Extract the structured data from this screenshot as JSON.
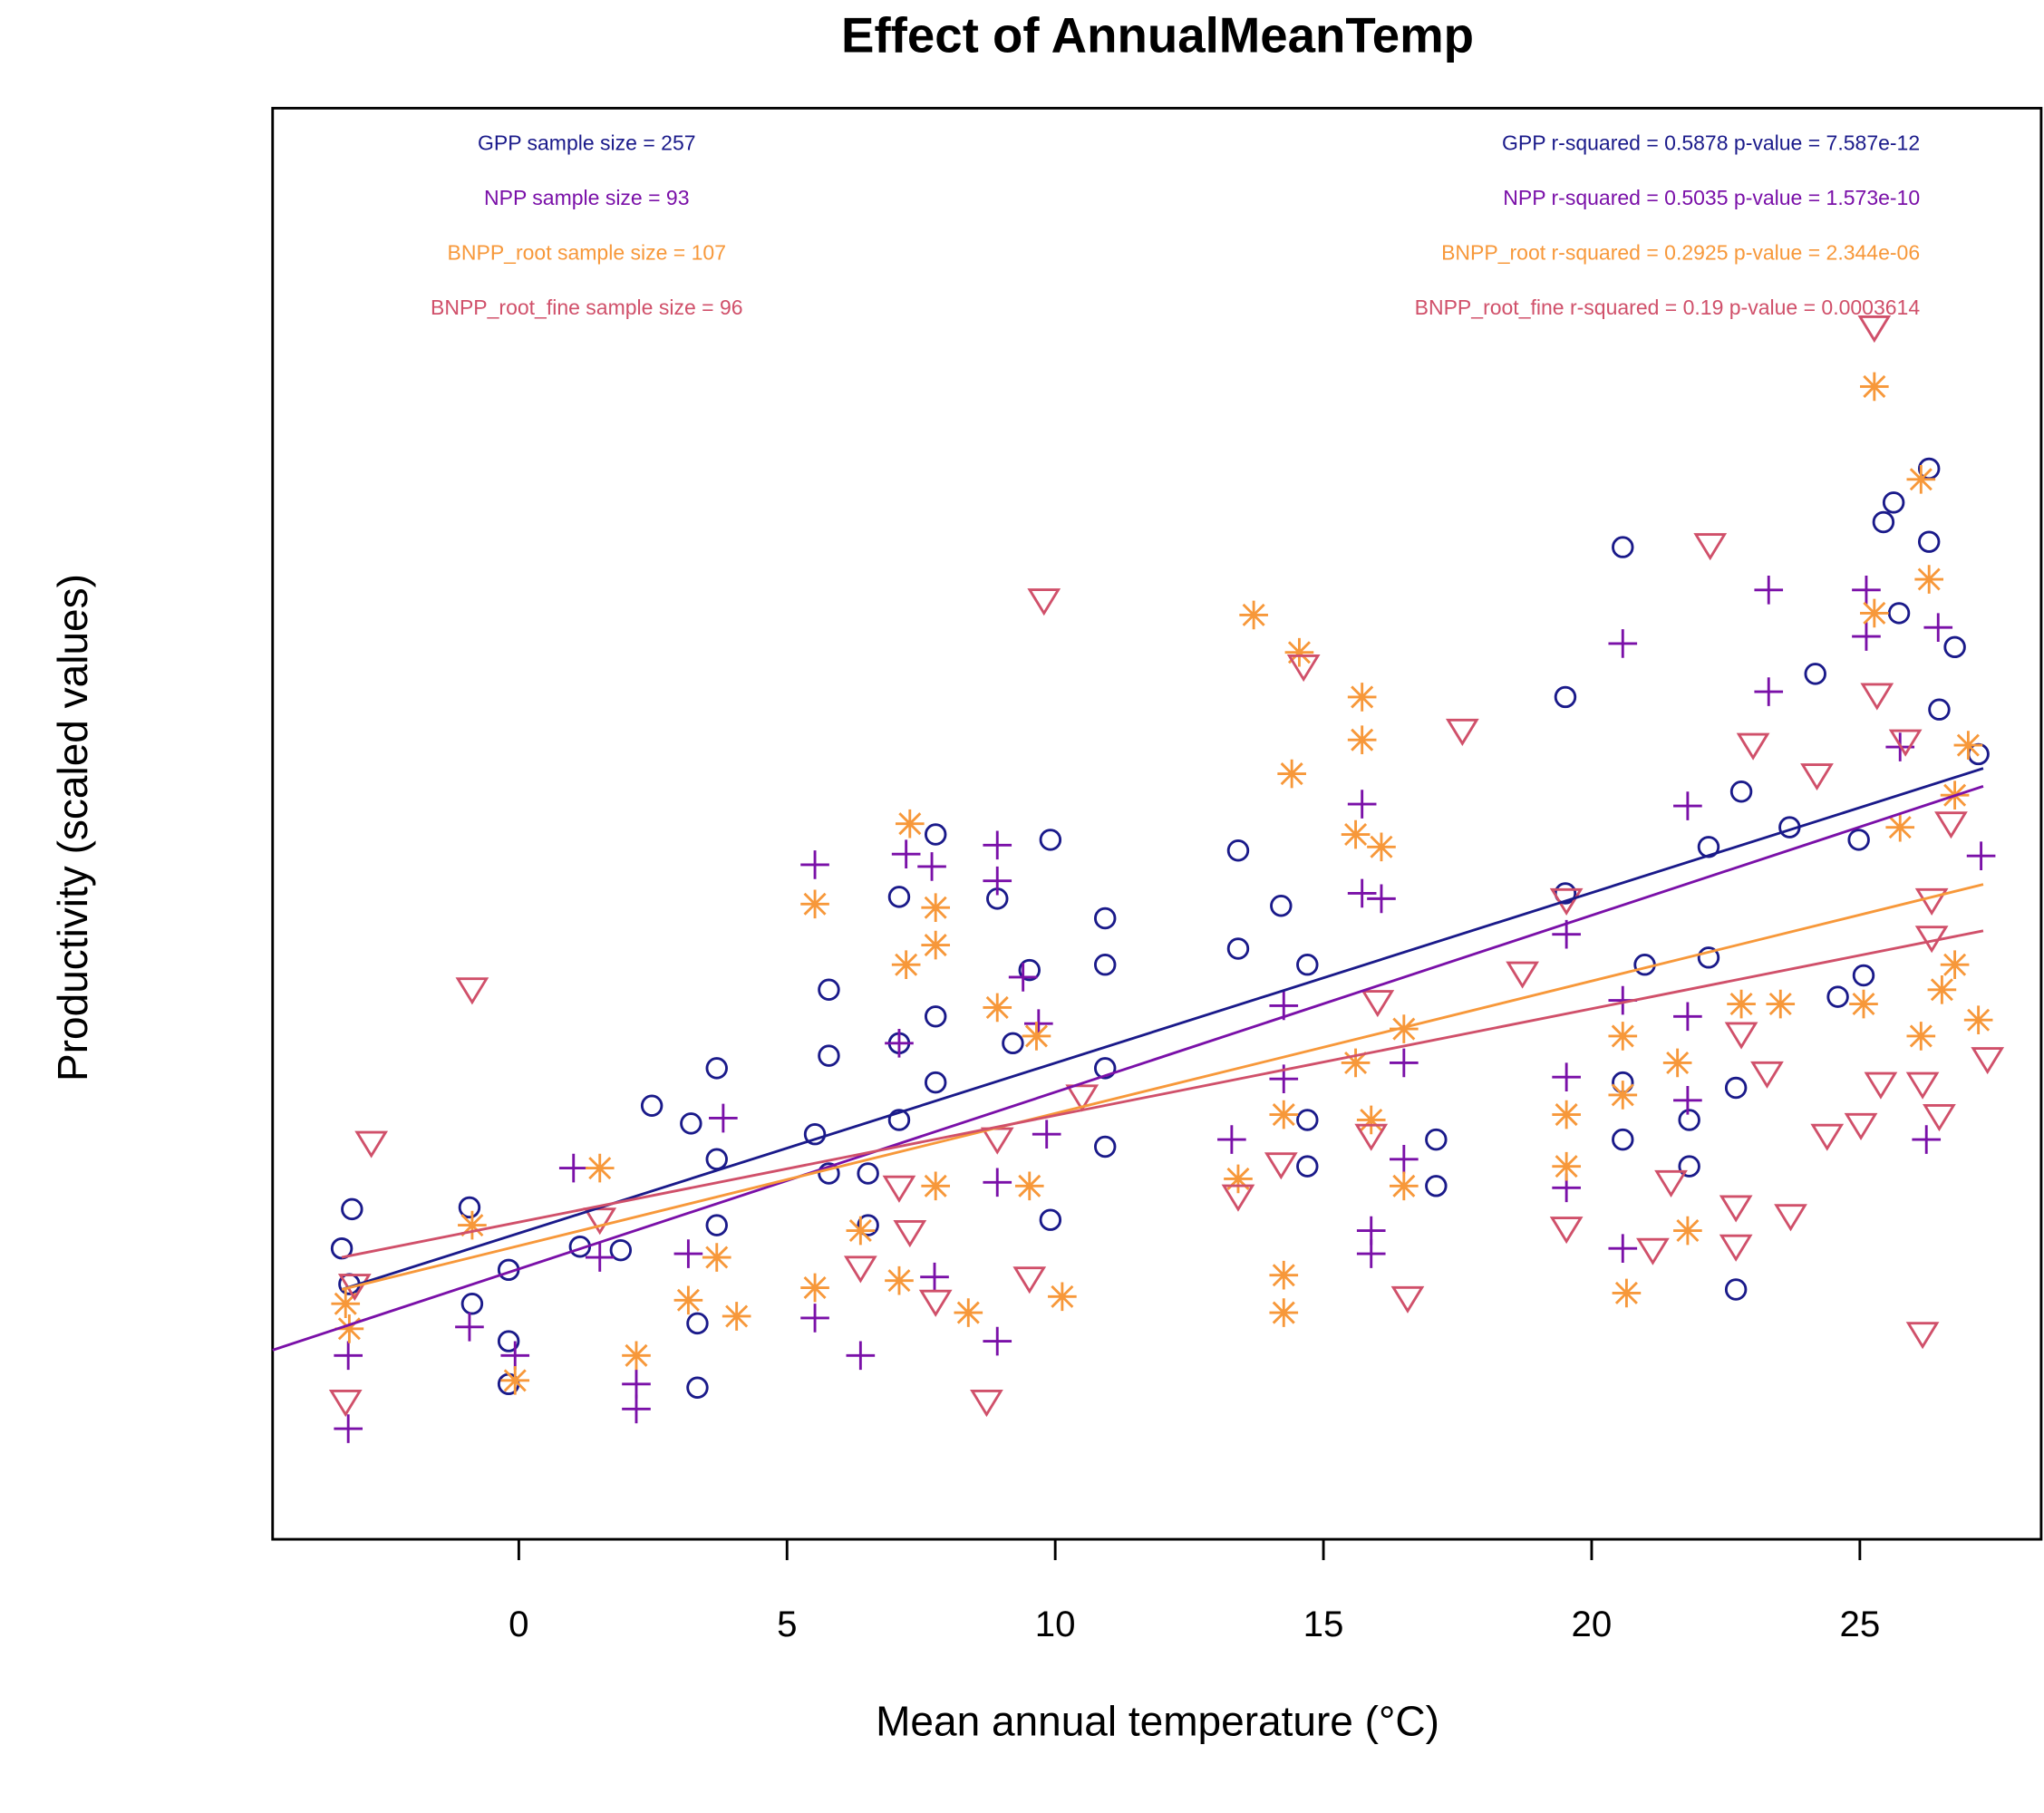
{
  "chart_data": {
    "type": "scatter",
    "title": "Effect of AnnualMeanTemp",
    "xlabel": "Mean annual temperature (°C)",
    "ylabel": "Productivity (scaled values)",
    "xlim": [
      -4.59,
      28.38
    ],
    "ylim": [
      -2.2,
      5.82
    ],
    "xticks": [
      0,
      5,
      10,
      15,
      20,
      25
    ],
    "series": [
      {
        "color": "#1a1a8a",
        "marker": "circle",
        "sample_label": "GPP sample size = 257",
        "stats_label": "GPP r-squared =  0.5878 p-value =  7.587e-12",
        "x": [
          -3.3,
          -3.11,
          -3.16,
          -0.92,
          -0.87,
          -0.19,
          -0.19,
          -0.19,
          1.14,
          1.9,
          2.48,
          3.21,
          3.33,
          3.33,
          3.69,
          3.69,
          3.69,
          5.78,
          5.78,
          5.52,
          5.78,
          6.51,
          6.51,
          7.09,
          7.09,
          7.09,
          7.77,
          7.77,
          7.77,
          8.92,
          9.21,
          9.52,
          9.91,
          9.91,
          10.93,
          10.93,
          10.93,
          10.93,
          13.41,
          13.41,
          14.21,
          14.7,
          14.7,
          14.7,
          17.1,
          17.1,
          19.51,
          19.51,
          20.58,
          20.58,
          20.58,
          20.99,
          21.82,
          21.82,
          22.18,
          22.18,
          22.69,
          22.69,
          22.79,
          23.69,
          24.17,
          24.59,
          25.07,
          24.98,
          25.44,
          25.63,
          25.73,
          26.29,
          26.29,
          26.48,
          26.77,
          27.21
        ],
        "y": [
          -0.57,
          -0.35,
          -0.77,
          -0.34,
          -0.88,
          -0.69,
          -1.09,
          -1.33,
          -0.56,
          -0.58,
          0.23,
          0.13,
          -0.99,
          -1.35,
          0.44,
          -0.07,
          -0.44,
          0.88,
          0.51,
          0.07,
          -0.15,
          -0.15,
          -0.44,
          1.4,
          0.58,
          0.15,
          1.75,
          0.73,
          0.36,
          1.39,
          0.58,
          0.99,
          1.72,
          -0.41,
          1.28,
          1.02,
          0.44,
          0.0,
          1.66,
          1.11,
          1.35,
          1.02,
          0.15,
          -0.11,
          0.04,
          -0.22,
          2.52,
          1.42,
          3.36,
          0.36,
          0.04,
          1.02,
          0.15,
          -0.11,
          1.68,
          1.06,
          0.33,
          -0.8,
          1.99,
          1.79,
          2.65,
          0.84,
          0.96,
          1.72,
          3.5,
          3.61,
          2.99,
          3.8,
          3.39,
          2.45,
          2.8,
          2.2
        ],
        "fit": {
          "x": [
            -3.3,
            27.3
          ],
          "y": [
            -0.8,
            2.12
          ]
        }
      },
      {
        "color": "#7a10a8",
        "marker": "plus",
        "sample_label": "NPP sample size = 93",
        "stats_label": "NPP r-squared =  0.5035 p-value =  1.573e-10",
        "x": [
          -3.18,
          -3.18,
          -0.92,
          -0.07,
          1.02,
          1.51,
          2.19,
          2.19,
          3.16,
          3.81,
          5.52,
          5.52,
          6.37,
          7.09,
          7.22,
          7.7,
          7.75,
          8.92,
          8.92,
          8.92,
          8.92,
          9.4,
          9.69,
          9.84,
          13.29,
          14.26,
          14.26,
          15.72,
          15.72,
          16.08,
          15.89,
          15.89,
          16.5,
          16.5,
          19.53,
          19.53,
          19.53,
          20.58,
          20.58,
          20.58,
          21.79,
          21.79,
          21.79,
          23.3,
          23.3,
          25.12,
          25.12,
          25.75,
          26.24,
          26.46,
          27.26
        ],
        "y": [
          -1.58,
          -1.17,
          -1.01,
          -1.17,
          -0.12,
          -0.62,
          -1.47,
          -1.33,
          -0.6,
          0.16,
          1.58,
          -0.96,
          -1.17,
          0.58,
          1.64,
          1.57,
          -0.73,
          1.69,
          1.49,
          -0.2,
          -1.09,
          0.95,
          0.69,
          0.07,
          0.04,
          0.79,
          0.38,
          1.92,
          1.42,
          1.39,
          -0.47,
          -0.6,
          0.47,
          -0.07,
          0.39,
          -0.23,
          1.19,
          2.82,
          0.82,
          -0.57,
          1.91,
          0.73,
          0.26,
          3.12,
          2.55,
          3.12,
          2.86,
          2.24,
          0.04,
          2.91,
          1.63
        ],
        "fit": {
          "x": [
            -4.59,
            27.3
          ],
          "y": [
            -1.14,
            2.02
          ]
        }
      },
      {
        "color": "#f7983a",
        "marker": "asterisk",
        "sample_label": "BNPP_root sample size = 107",
        "stats_label": "BNPP_root r-squared =  0.2925 p-value =  2.344e-06",
        "x": [
          -3.23,
          -3.16,
          -0.87,
          -0.07,
          1.51,
          2.19,
          3.16,
          3.69,
          4.06,
          5.52,
          5.52,
          6.37,
          7.09,
          7.22,
          7.29,
          7.77,
          7.77,
          7.77,
          8.38,
          8.92,
          9.65,
          10.13,
          9.52,
          13.41,
          13.7,
          14.26,
          14.26,
          14.26,
          14.55,
          15.72,
          15.72,
          14.41,
          15.6,
          16.08,
          15.6,
          15.89,
          16.5,
          16.5,
          19.53,
          19.53,
          20.58,
          20.58,
          20.65,
          21.6,
          21.79,
          22.79,
          23.52,
          25.27,
          25.27,
          25.07,
          25.75,
          26.14,
          26.29,
          26.14,
          26.53,
          26.77,
          26.77,
          27.21,
          27.02
        ],
        "y": [
          -0.88,
          -1.02,
          -0.44,
          -1.31,
          -0.12,
          -1.17,
          -0.86,
          -0.62,
          -0.95,
          1.36,
          -0.79,
          -0.47,
          -0.75,
          1.02,
          1.81,
          1.34,
          1.13,
          -0.22,
          -0.93,
          0.78,
          0.62,
          -0.84,
          -0.22,
          -0.18,
          2.98,
          0.18,
          -0.72,
          -0.93,
          2.77,
          2.52,
          2.28,
          2.09,
          1.75,
          1.68,
          0.47,
          0.15,
          0.66,
          -0.22,
          0.18,
          -0.11,
          0.62,
          0.29,
          -0.82,
          0.47,
          -0.47,
          0.8,
          0.8,
          4.26,
          2.99,
          0.8,
          1.79,
          3.74,
          3.18,
          0.62,
          0.88,
          1.97,
          1.02,
          0.71,
          2.25
        ],
        "fit": {
          "x": [
            -3.3,
            27.3
          ],
          "y": [
            -0.8,
            1.47
          ]
        }
      },
      {
        "color": "#d0506a",
        "marker": "triangle-down",
        "sample_label": "BNPP_root_fine sample size = 96",
        "stats_label": "BNPP_root_fine r-squared =  0.19 p-value =  0.0003614",
        "x": [
          -3.23,
          -3.06,
          -2.75,
          -0.87,
          1.51,
          6.37,
          7.09,
          7.29,
          7.77,
          8.72,
          8.92,
          9.52,
          9.79,
          10.5,
          13.41,
          14.21,
          14.63,
          16.01,
          15.89,
          16.57,
          17.59,
          18.71,
          19.53,
          19.53,
          21.14,
          21.48,
          22.21,
          22.69,
          22.69,
          22.79,
          23.01,
          23.27,
          23.71,
          24.2,
          24.39,
          25.02,
          25.27,
          25.32,
          25.39,
          25.85,
          26.17,
          26.17,
          26.34,
          26.34,
          26.48,
          26.7,
          27.38
        ],
        "y": [
          -1.42,
          -0.77,
          0.03,
          0.89,
          -0.4,
          -0.67,
          -0.22,
          -0.47,
          -0.86,
          -1.42,
          0.05,
          -0.73,
          3.07,
          0.29,
          -0.27,
          -0.09,
          2.7,
          0.82,
          0.07,
          -0.84,
          2.34,
          0.98,
          -0.45,
          1.39,
          -0.57,
          -0.19,
          3.38,
          -0.33,
          -0.55,
          0.64,
          2.26,
          0.42,
          -0.38,
          2.09,
          0.07,
          0.13,
          4.6,
          2.54,
          0.36,
          2.28,
          -1.04,
          0.36,
          1.39,
          1.18,
          0.18,
          1.82,
          0.5
        ],
        "fit": {
          "x": [
            -3.3,
            27.3
          ],
          "y": [
            -0.62,
            1.21
          ]
        }
      }
    ]
  }
}
